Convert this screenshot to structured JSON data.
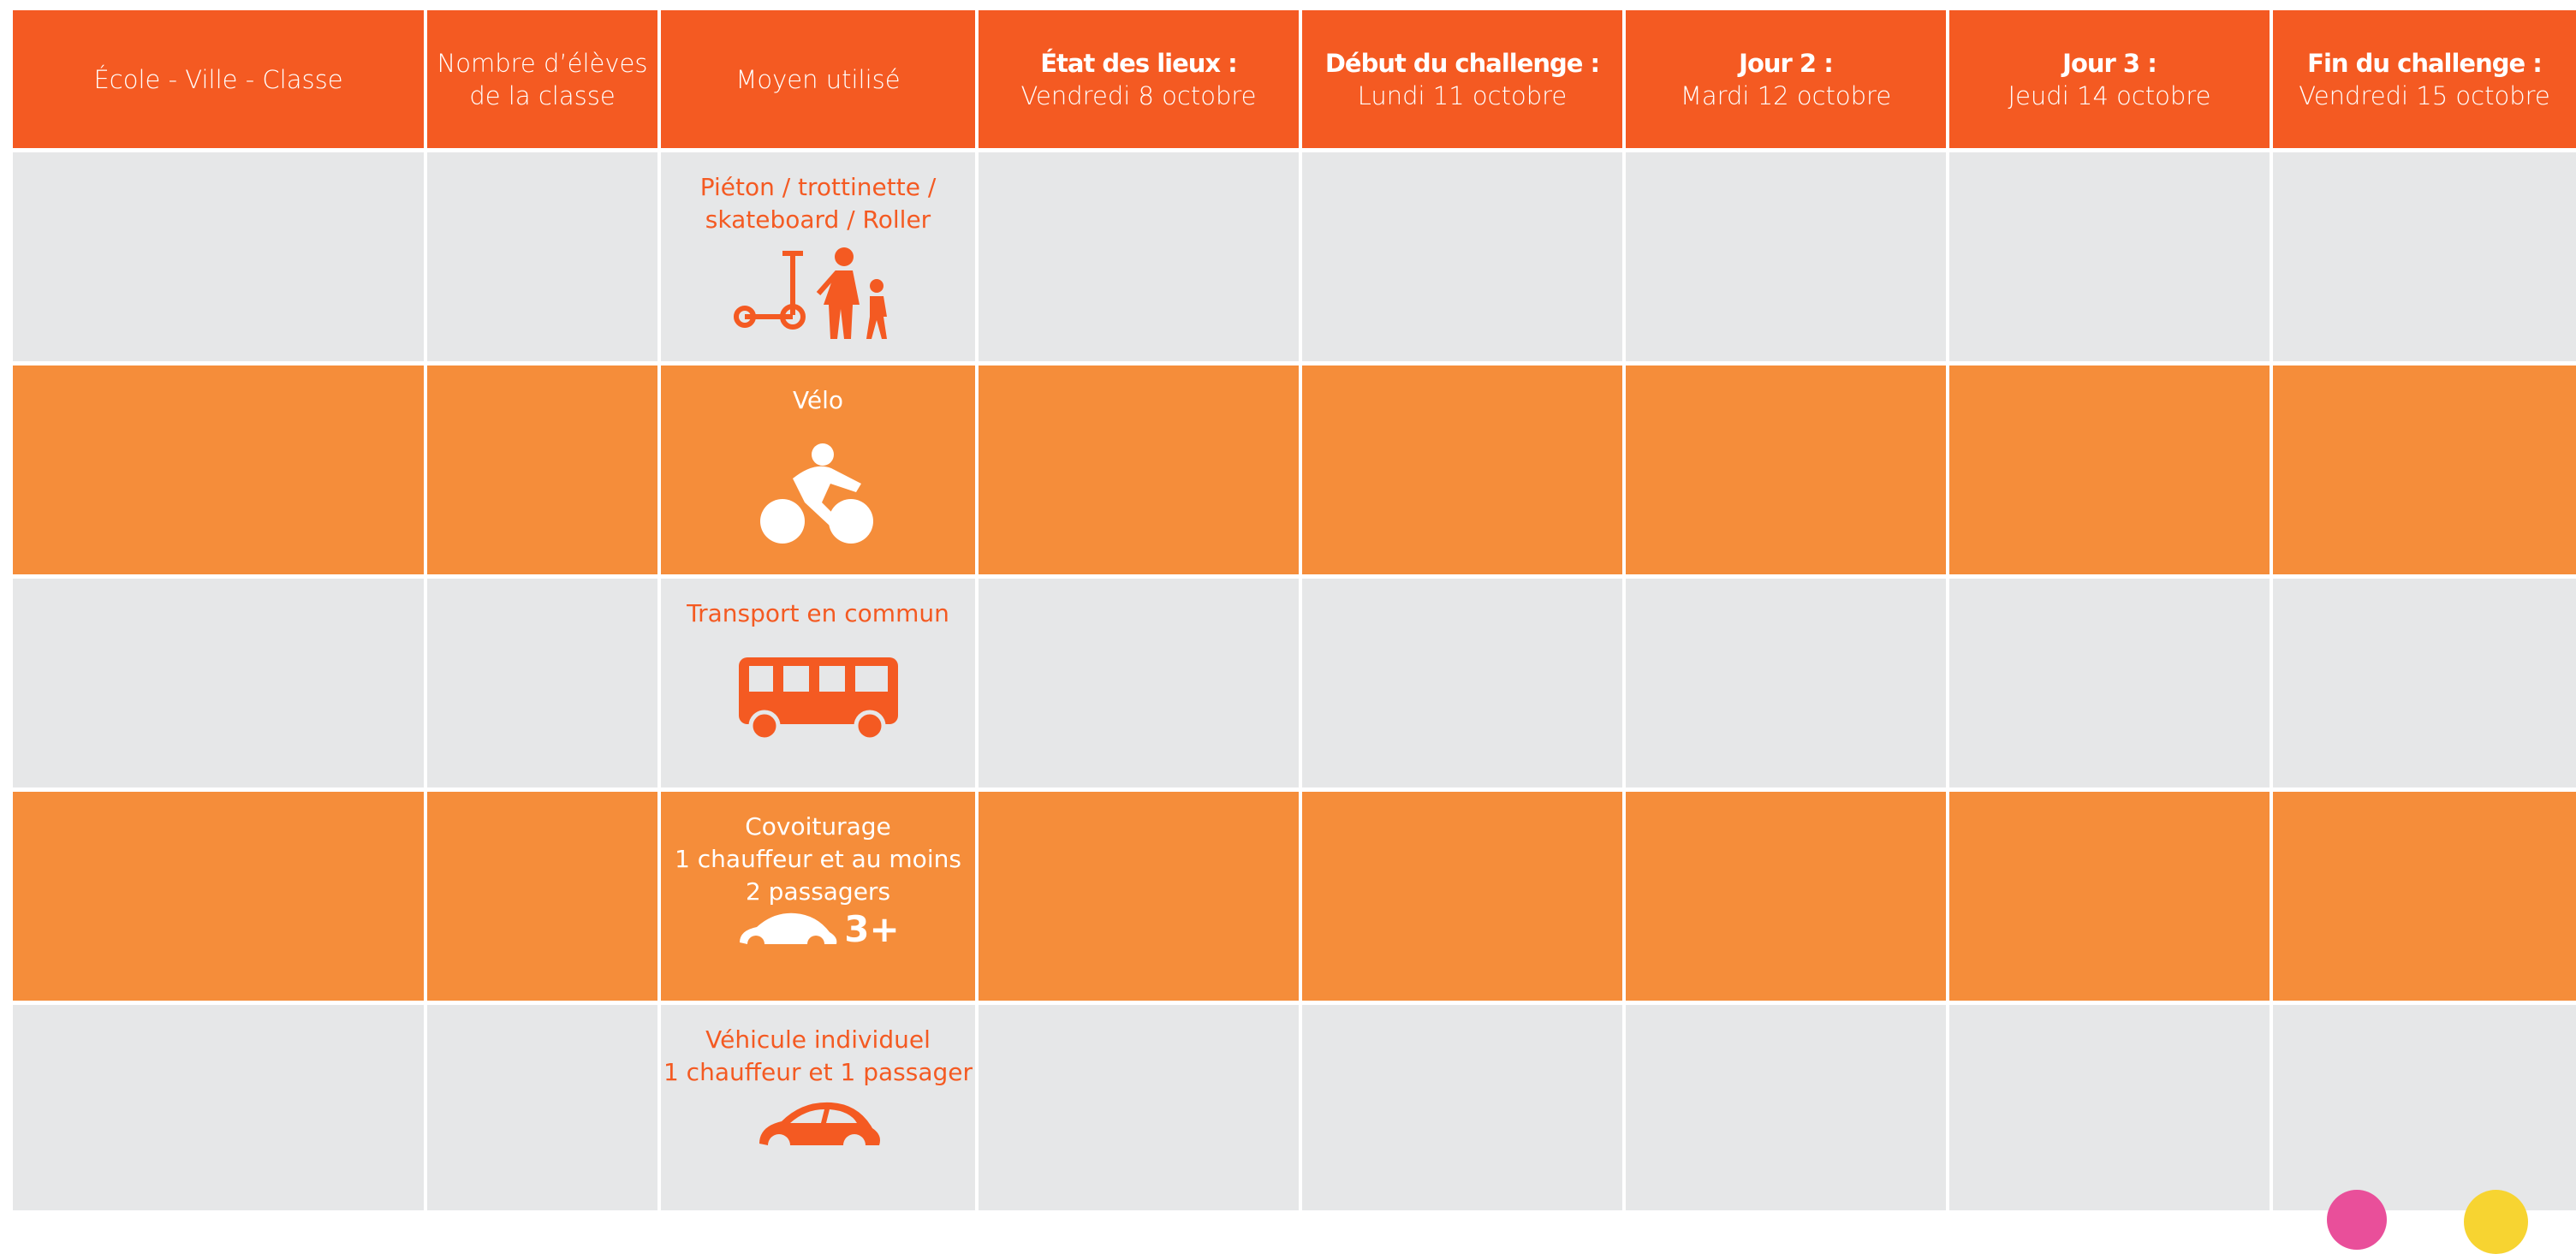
{
  "table": {
    "headers": [
      {
        "title": "École - Ville - Classe"
      },
      {
        "title": "Nombre d’élèves\nde la classe"
      },
      {
        "title": "Moyen utilisé"
      },
      {
        "title": "État des lieux :",
        "subtitle": "Vendredi 8 octobre"
      },
      {
        "title": "Début du challenge :",
        "subtitle": "Lundi 11 octobre"
      },
      {
        "title": "Jour 2 :",
        "subtitle": "Mardi 12 octobre"
      },
      {
        "title": "Jour 3 :",
        "subtitle": "Jeudi 14 octobre"
      },
      {
        "title": "Fin du challenge :",
        "subtitle": "Vendredi 15 octobre"
      }
    ],
    "rows": [
      {
        "mode": "Piéton / trottinette /\nskateboard / Roller"
      },
      {
        "mode": "Vélo"
      },
      {
        "mode": "Transport en commun"
      },
      {
        "mode": "Covoiturage\n1 chauffeur et au moins\n2 passagers",
        "badge": "3+"
      },
      {
        "mode": "Véhicule individuel\n1 chauffeur et 1 passager"
      }
    ]
  }
}
